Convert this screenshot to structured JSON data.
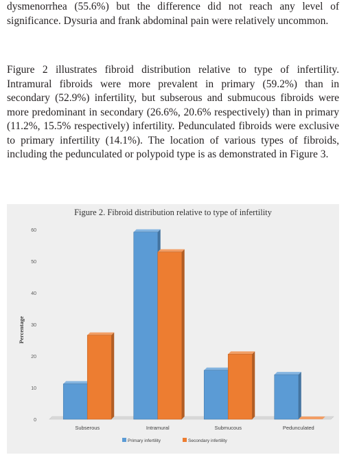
{
  "text": {
    "paragraph1": "dysmenorrhea (55.6%) but the difference did not reach any level of significance. Dysuria and frank abdominal pain were relatively uncommon.",
    "paragraph2": "Figure 2 illustrates fibroid distribution relative to type of infertility. Intramural fibroids were more prevalent in primary (59.2%) than in secondary (52.9%) infertility, but subserous and submucous fibroids were more predominant in secondary (26.6%, 20.6% respectively) than in primary (11.2%, 15.5% respectively) infertility. Pedunculated fibroids were exclusive to primary infertility (14.1%). The location of various types of fibroids, including the pedunculated or polypoid type is as demonstrated in Figure 3."
  },
  "chart_data": {
    "type": "bar",
    "title": "Figure 2. Fibroid distribution relative to type of infertility",
    "xlabel": "",
    "ylabel": "Percentage",
    "ylim": [
      0,
      60
    ],
    "yticks": [
      0,
      10,
      20,
      30,
      40,
      50,
      60
    ],
    "categories": [
      "Subserous",
      "Intramural",
      "Submucous",
      "Pedunculated"
    ],
    "series": [
      {
        "name": "Primary infertility",
        "values": [
          11.2,
          59.2,
          15.5,
          14.1
        ],
        "color": "#5b9bd5"
      },
      {
        "name": "Secondary infertility",
        "values": [
          26.6,
          52.9,
          20.6,
          0
        ],
        "color": "#ed7d31"
      }
    ],
    "legend_position": "bottom",
    "grid": false
  }
}
